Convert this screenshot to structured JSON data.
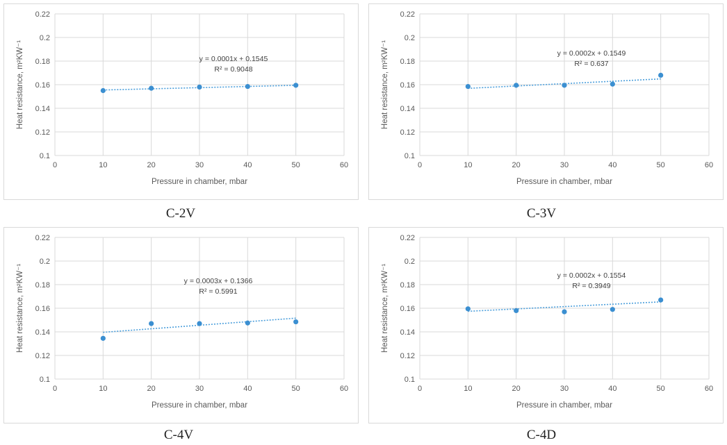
{
  "chart_data": [
    {
      "type": "scatter",
      "caption": "C-2V",
      "x": [
        10,
        20,
        30,
        40,
        50
      ],
      "y": [
        0.155,
        0.157,
        0.158,
        0.1585,
        0.1595
      ],
      "xlim": [
        0,
        60
      ],
      "ylim": [
        0.1,
        0.22
      ],
      "xticks": [
        "0",
        "10",
        "20",
        "30",
        "40",
        "50",
        "60"
      ],
      "yticks": [
        "0.1",
        "0.12",
        "0.14",
        "0.16",
        "0.18",
        "0.2",
        "0.22"
      ],
      "xlabel": "Pressure in chamber, mbar",
      "ylabel": "Heat resistance, m²KW⁻¹",
      "trendline": {
        "slope": 0.0001,
        "intercept": 0.1545,
        "equation": "y = 0.0001x + 0.1545",
        "r2": "R² = 0.9048"
      },
      "grid": true
    },
    {
      "type": "scatter",
      "caption": "C-3V",
      "x": [
        10,
        20,
        30,
        40,
        50
      ],
      "y": [
        0.1585,
        0.1595,
        0.1595,
        0.1605,
        0.168
      ],
      "xlim": [
        0,
        60
      ],
      "ylim": [
        0.1,
        0.22
      ],
      "xticks": [
        "0",
        "10",
        "20",
        "30",
        "40",
        "50",
        "60"
      ],
      "yticks": [
        "0.1",
        "0.12",
        "0.14",
        "0.16",
        "0.18",
        "0.2",
        "0.22"
      ],
      "xlabel": "Pressure in chamber, mbar",
      "ylabel": "Heat resistance, m²KW⁻¹",
      "trendline": {
        "slope": 0.0002,
        "intercept": 0.1549,
        "equation": "y = 0.0002x + 0.1549",
        "r2": "R² = 0.637"
      },
      "grid": true
    },
    {
      "type": "scatter",
      "caption": "C-4V",
      "x": [
        10,
        20,
        30,
        40,
        50
      ],
      "y": [
        0.1345,
        0.147,
        0.147,
        0.1475,
        0.1485
      ],
      "xlim": [
        0,
        60
      ],
      "ylim": [
        0.1,
        0.22
      ],
      "xticks": [
        "0",
        "10",
        "20",
        "30",
        "40",
        "50",
        "60"
      ],
      "yticks": [
        "0.1",
        "0.12",
        "0.14",
        "0.16",
        "0.18",
        "0.2",
        "0.22"
      ],
      "xlabel": "Pressure in chamber, mbar",
      "ylabel": "Heat resistance, m²KW⁻¹",
      "trendline": {
        "slope": 0.0003,
        "intercept": 0.1366,
        "equation": "y = 0.0003x + 0.1366",
        "r2": "R² = 0.5991"
      },
      "grid": true
    },
    {
      "type": "scatter",
      "caption": "C-4D",
      "x": [
        10,
        20,
        30,
        40,
        50
      ],
      "y": [
        0.1595,
        0.158,
        0.157,
        0.159,
        0.167
      ],
      "xlim": [
        0,
        60
      ],
      "ylim": [
        0.1,
        0.22
      ],
      "xticks": [
        "0",
        "10",
        "20",
        "30",
        "40",
        "50",
        "60"
      ],
      "yticks": [
        "0.1",
        "0.12",
        "0.14",
        "0.16",
        "0.18",
        "0.2",
        "0.22"
      ],
      "xlabel": "Pressure in chamber, mbar",
      "ylabel": "Heat resistance, m²KW⁻¹",
      "trendline": {
        "slope": 0.0002,
        "intercept": 0.1554,
        "equation": "y = 0.0002x + 0.1554",
        "r2": "R² = 0.3949"
      },
      "grid": true
    }
  ]
}
